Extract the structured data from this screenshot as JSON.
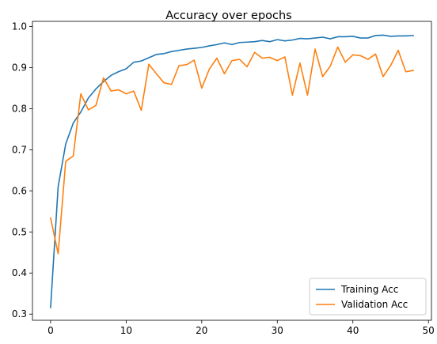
{
  "chart_data": {
    "type": "line",
    "title": "Accuracy over epochs",
    "xlabel": "",
    "ylabel": "",
    "xlim": [
      -2.4,
      50.4
    ],
    "ylim": [
      0.285,
      1.0125
    ],
    "x_ticks": [
      0,
      10,
      20,
      30,
      40,
      50
    ],
    "y_ticks": [
      0.3,
      0.4,
      0.5,
      0.6,
      0.7,
      0.8,
      0.9,
      1.0
    ],
    "y_tick_labels": [
      "0.3",
      "0.4",
      "0.5",
      "0.6",
      "0.7",
      "0.8",
      "0.9",
      "1.0"
    ],
    "grid": false,
    "legend_position": "lower-right",
    "x": [
      0,
      1,
      2,
      3,
      4,
      5,
      6,
      7,
      8,
      9,
      10,
      11,
      12,
      13,
      14,
      15,
      16,
      17,
      18,
      19,
      20,
      21,
      22,
      23,
      24,
      25,
      26,
      27,
      28,
      29,
      30,
      31,
      32,
      33,
      34,
      35,
      36,
      37,
      38,
      39,
      40,
      41,
      42,
      43,
      44,
      45,
      46,
      47,
      48
    ],
    "series": [
      {
        "name": "Training Acc",
        "color": "#1f77b4",
        "values": [
          0.316,
          0.61,
          0.714,
          0.765,
          0.792,
          0.826,
          0.848,
          0.866,
          0.881,
          0.89,
          0.897,
          0.913,
          0.916,
          0.924,
          0.932,
          0.934,
          0.939,
          0.942,
          0.945,
          0.947,
          0.949,
          0.953,
          0.956,
          0.96,
          0.956,
          0.961,
          0.962,
          0.963,
          0.966,
          0.963,
          0.968,
          0.965,
          0.967,
          0.971,
          0.97,
          0.972,
          0.974,
          0.97,
          0.975,
          0.975,
          0.976,
          0.972,
          0.972,
          0.978,
          0.979,
          0.976,
          0.977,
          0.977,
          0.978
        ]
      },
      {
        "name": "Validation Acc",
        "color": "#ff7f0e",
        "values": [
          0.534,
          0.447,
          0.672,
          0.685,
          0.836,
          0.797,
          0.808,
          0.875,
          0.843,
          0.846,
          0.836,
          0.843,
          0.796,
          0.908,
          0.885,
          0.863,
          0.859,
          0.905,
          0.907,
          0.918,
          0.85,
          0.896,
          0.923,
          0.885,
          0.917,
          0.92,
          0.902,
          0.937,
          0.923,
          0.925,
          0.917,
          0.926,
          0.833,
          0.911,
          0.833,
          0.945,
          0.878,
          0.903,
          0.95,
          0.913,
          0.931,
          0.929,
          0.92,
          0.933,
          0.878,
          0.905,
          0.942,
          0.89,
          0.893
        ]
      }
    ]
  }
}
